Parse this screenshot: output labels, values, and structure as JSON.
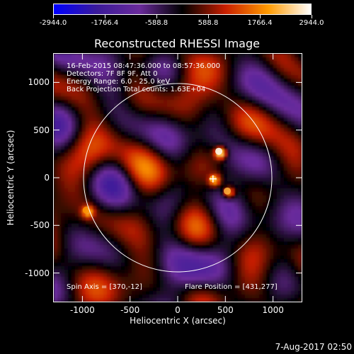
{
  "colors": {
    "background": "#000000",
    "foreground": "#ffffff",
    "colormap": [
      "#0000ff",
      "#3a1a9a",
      "#6a2b9b",
      "#000000",
      "#c81e00",
      "#ff9a00",
      "#ffffff"
    ]
  },
  "colorbar": {
    "min": -2944.0,
    "max": 2944.0,
    "tick_labels": [
      "-2944.0",
      "-1766.4",
      "-588.8",
      "588.8",
      "1766.4",
      "2944.0"
    ]
  },
  "image": {
    "title": "Reconstructed RHESSI Image",
    "info_lines": [
      "16-Feb-2015 08:47:36.000 to 08:57:36.000",
      "Detectors: 7F 8F 9F, Att 0",
      "Energy Range: 6.0 - 25.0 keV",
      "Back Projection    Total counts: 1.63E+04"
    ],
    "spin_axis": "Spin Axis = [370,-12]",
    "flare_position": "Flare Position = [431,277]",
    "x_axis": {
      "label": "Heliocentric X (arcsec)",
      "range": [
        -1300,
        1300
      ],
      "ticks": [
        -1000,
        -500,
        0,
        500,
        1000
      ],
      "tick_labels": [
        "-1000",
        "-500",
        "0",
        "500",
        "1000"
      ]
    },
    "y_axis": {
      "label": "Heliocentric Y (arcsec)",
      "range": [
        -1300,
        1300
      ],
      "ticks": [
        1000,
        500,
        0,
        -500,
        -1000
      ],
      "tick_labels": [
        "1000",
        "500",
        "0",
        "-500",
        "-1000"
      ]
    },
    "solar_limb_radius_arcsec": 988,
    "marker_position_arcsec": [
      370,
      -12
    ],
    "bright_sources_arcsec": [
      {
        "x": 431,
        "y": 277,
        "value": 2900
      },
      {
        "x": 520,
        "y": -140,
        "value": 2200
      },
      {
        "x": -960,
        "y": -340,
        "value": 1900
      },
      {
        "x": 370,
        "y": -12,
        "value": 2100
      }
    ]
  },
  "timestamp": "7-Aug-2017 02:50"
}
